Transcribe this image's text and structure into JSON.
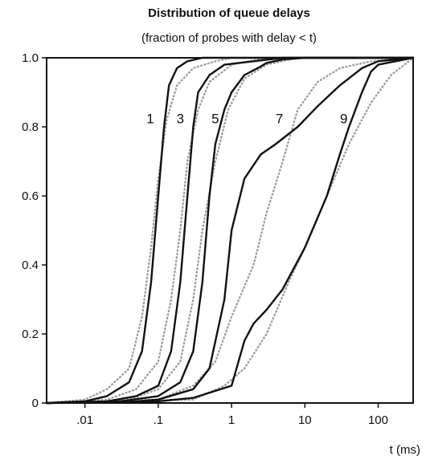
{
  "chart_data": {
    "type": "line",
    "title": "Distribution of queue delays",
    "subtitle": "(fraction of probes with delay < t)",
    "xlabel": "t (ms)",
    "ylabel": "",
    "xscale": "log",
    "xlim": [
      0.003,
      300
    ],
    "ylim": [
      0,
      1
    ],
    "grid": false,
    "x_ticks": [
      {
        "value": 0.01,
        "label": ".01"
      },
      {
        "value": 0.1,
        "label": ".1"
      },
      {
        "value": 1,
        "label": "1"
      },
      {
        "value": 10,
        "label": "10"
      },
      {
        "value": 100,
        "label": "100"
      }
    ],
    "y_ticks": [
      {
        "value": 0,
        "label": "0"
      },
      {
        "value": 0.2,
        "label": "0.2"
      },
      {
        "value": 0.4,
        "label": "0.4"
      },
      {
        "value": 0.6,
        "label": "0.6"
      },
      {
        "value": 0.8,
        "label": "0.8"
      },
      {
        "value": 1.0,
        "label": "1.0"
      }
    ],
    "annotations": [
      {
        "text": "1",
        "x": 0.078,
        "y": 0.81
      },
      {
        "text": "3",
        "x": 0.2,
        "y": 0.81
      },
      {
        "text": "5",
        "x": 0.6,
        "y": 0.81
      },
      {
        "text": "7",
        "x": 4.5,
        "y": 0.81
      },
      {
        "text": "9",
        "x": 34,
        "y": 0.81
      }
    ],
    "colors": {
      "measured": "#111111",
      "model": "#9a9a9a"
    },
    "series": [
      {
        "style": "measured",
        "points": [
          [
            0.003,
            0
          ],
          [
            0.01,
            0.005
          ],
          [
            0.02,
            0.02
          ],
          [
            0.04,
            0.06
          ],
          [
            0.06,
            0.15
          ],
          [
            0.08,
            0.35
          ],
          [
            0.1,
            0.6
          ],
          [
            0.12,
            0.8
          ],
          [
            0.14,
            0.92
          ],
          [
            0.18,
            0.97
          ],
          [
            0.25,
            0.99
          ],
          [
            0.4,
            1.0
          ],
          [
            300,
            1.0
          ]
        ]
      },
      {
        "style": "measured",
        "points": [
          [
            0.003,
            0
          ],
          [
            0.02,
            0.005
          ],
          [
            0.05,
            0.02
          ],
          [
            0.1,
            0.05
          ],
          [
            0.15,
            0.15
          ],
          [
            0.2,
            0.35
          ],
          [
            0.25,
            0.6
          ],
          [
            0.3,
            0.8
          ],
          [
            0.35,
            0.9
          ],
          [
            0.5,
            0.95
          ],
          [
            0.8,
            0.98
          ],
          [
            2,
            0.99
          ],
          [
            5,
            1.0
          ],
          [
            300,
            1.0
          ]
        ]
      },
      {
        "style": "measured",
        "points": [
          [
            0.003,
            0
          ],
          [
            0.03,
            0.005
          ],
          [
            0.1,
            0.02
          ],
          [
            0.2,
            0.06
          ],
          [
            0.3,
            0.15
          ],
          [
            0.4,
            0.35
          ],
          [
            0.5,
            0.6
          ],
          [
            0.6,
            0.75
          ],
          [
            0.8,
            0.85
          ],
          [
            1.0,
            0.9
          ],
          [
            1.5,
            0.95
          ],
          [
            2.5,
            0.975
          ],
          [
            3,
            0.985
          ],
          [
            5,
            0.995
          ],
          [
            10,
            1.0
          ],
          [
            300,
            1.0
          ]
        ]
      },
      {
        "style": "measured",
        "points": [
          [
            0.003,
            0
          ],
          [
            0.05,
            0.005
          ],
          [
            0.1,
            0.01
          ],
          [
            0.3,
            0.04
          ],
          [
            0.5,
            0.1
          ],
          [
            0.8,
            0.3
          ],
          [
            1.0,
            0.5
          ],
          [
            1.5,
            0.65
          ],
          [
            2.5,
            0.72
          ],
          [
            4,
            0.75
          ],
          [
            8,
            0.8
          ],
          [
            15,
            0.86
          ],
          [
            30,
            0.92
          ],
          [
            60,
            0.97
          ],
          [
            100,
            0.99
          ],
          [
            300,
            1.0
          ]
        ]
      },
      {
        "style": "measured",
        "points": [
          [
            0.003,
            0
          ],
          [
            0.1,
            0.005
          ],
          [
            0.3,
            0.015
          ],
          [
            1,
            0.05
          ],
          [
            1.5,
            0.18
          ],
          [
            2,
            0.23
          ],
          [
            3,
            0.27
          ],
          [
            5,
            0.33
          ],
          [
            10,
            0.45
          ],
          [
            20,
            0.6
          ],
          [
            30,
            0.72
          ],
          [
            40,
            0.8
          ],
          [
            60,
            0.9
          ],
          [
            80,
            0.96
          ],
          [
            100,
            0.98
          ],
          [
            300,
            1.0
          ]
        ]
      },
      {
        "style": "model",
        "points": [
          [
            0.003,
            0
          ],
          [
            0.01,
            0.01
          ],
          [
            0.02,
            0.04
          ],
          [
            0.04,
            0.1
          ],
          [
            0.06,
            0.25
          ],
          [
            0.08,
            0.45
          ],
          [
            0.1,
            0.65
          ],
          [
            0.13,
            0.82
          ],
          [
            0.18,
            0.92
          ],
          [
            0.3,
            0.97
          ],
          [
            0.6,
            0.99
          ],
          [
            1,
            1.0
          ],
          [
            300,
            1.0
          ]
        ]
      },
      {
        "style": "model",
        "points": [
          [
            0.003,
            0
          ],
          [
            0.02,
            0.01
          ],
          [
            0.05,
            0.04
          ],
          [
            0.1,
            0.12
          ],
          [
            0.15,
            0.3
          ],
          [
            0.2,
            0.5
          ],
          [
            0.25,
            0.7
          ],
          [
            0.35,
            0.85
          ],
          [
            0.5,
            0.93
          ],
          [
            1,
            0.98
          ],
          [
            3,
            1.0
          ],
          [
            300,
            1.0
          ]
        ]
      },
      {
        "style": "model",
        "points": [
          [
            0.003,
            0
          ],
          [
            0.04,
            0.01
          ],
          [
            0.1,
            0.04
          ],
          [
            0.2,
            0.12
          ],
          [
            0.3,
            0.3
          ],
          [
            0.4,
            0.5
          ],
          [
            0.6,
            0.7
          ],
          [
            0.9,
            0.85
          ],
          [
            1.5,
            0.94
          ],
          [
            3,
            0.98
          ],
          [
            8,
            1.0
          ],
          [
            300,
            1.0
          ]
        ]
      },
      {
        "style": "model",
        "points": [
          [
            0.003,
            0
          ],
          [
            0.1,
            0.01
          ],
          [
            0.3,
            0.05
          ],
          [
            0.6,
            0.12
          ],
          [
            1,
            0.25
          ],
          [
            2,
            0.4
          ],
          [
            3,
            0.55
          ],
          [
            5,
            0.7
          ],
          [
            8,
            0.85
          ],
          [
            15,
            0.93
          ],
          [
            30,
            0.97
          ],
          [
            80,
            0.99
          ],
          [
            300,
            1.0
          ]
        ]
      },
      {
        "style": "model",
        "points": [
          [
            0.003,
            0
          ],
          [
            0.3,
            0.01
          ],
          [
            0.8,
            0.05
          ],
          [
            1.5,
            0.1
          ],
          [
            3,
            0.2
          ],
          [
            6,
            0.35
          ],
          [
            10,
            0.45
          ],
          [
            20,
            0.6
          ],
          [
            40,
            0.75
          ],
          [
            80,
            0.87
          ],
          [
            150,
            0.95
          ],
          [
            300,
            1.0
          ]
        ]
      }
    ]
  }
}
